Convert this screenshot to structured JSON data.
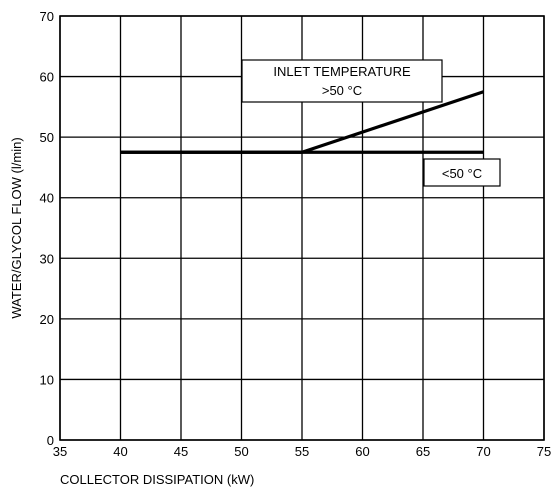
{
  "chart_data": {
    "type": "line",
    "title": "",
    "xlabel": "COLLECTOR DISSIPATION (kW)",
    "ylabel": "WATER/GLYCOL FLOW (l/min)",
    "xlim": [
      35,
      75
    ],
    "ylim": [
      0,
      70
    ],
    "xticks": [
      35,
      40,
      45,
      50,
      55,
      60,
      65,
      70,
      75
    ],
    "yticks": [
      0,
      10,
      20,
      30,
      40,
      50,
      60,
      70
    ],
    "grid": true,
    "series": [
      {
        "name": "<50 °C",
        "x": [
          40,
          55,
          70
        ],
        "y": [
          47.5,
          47.5,
          47.5
        ]
      },
      {
        "name": ">50 °C",
        "x": [
          40,
          55,
          70
        ],
        "y": [
          47.5,
          47.5,
          57.5
        ]
      }
    ],
    "annotations": {
      "inlet_title": "INLET TEMPERATURE",
      "high_label": ">50 °C",
      "low_label": "<50 °C"
    }
  }
}
